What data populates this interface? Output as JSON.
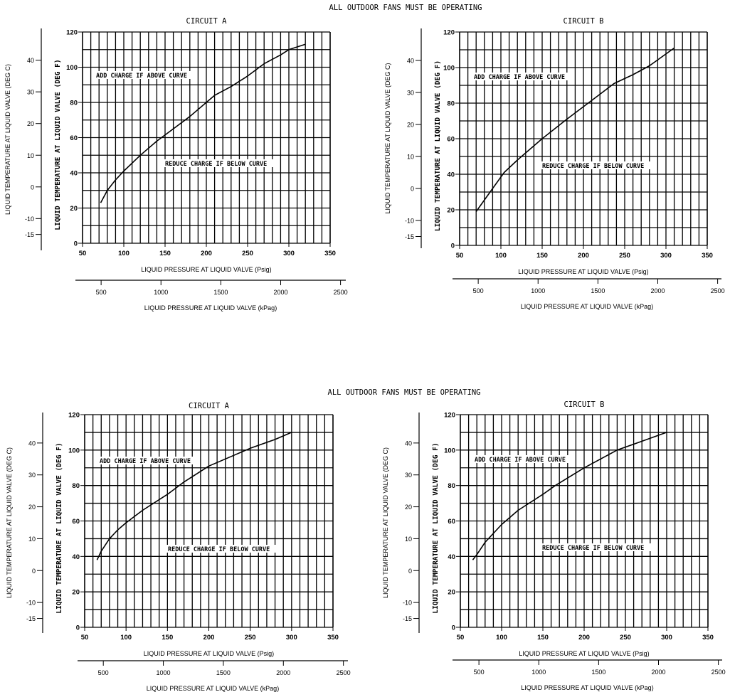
{
  "chart_data": [
    {
      "type": "line",
      "group_title": "ALL OUTDOOR FANS MUST BE OPERATING",
      "title": "CIRCUIT A",
      "xlabel": "LIQUID PRESSURE AT LIQUID VALVE (Psig)",
      "ylabel": "LIQUID TEMPERATURE AT LIQUID VALVE (DEG F)",
      "x2label": "LIQUID PRESSURE AT LIQUID VALVE (kPag)",
      "y2label": "LIQUID TEMPERATURE AT LIQUID VALVE (DEG C)",
      "xlim": [
        50,
        350
      ],
      "ylim": [
        0,
        120
      ],
      "xticks": [
        "50",
        "100",
        "150",
        "200",
        "250",
        "300",
        "350"
      ],
      "yticks": [
        "0",
        "20",
        "40",
        "60",
        "80",
        "100",
        "120"
      ],
      "x2ticks": [
        "500",
        "1000",
        "1500",
        "2000",
        "2500"
      ],
      "y2ticks": [
        "40",
        "30",
        "20",
        "10",
        "0",
        "-10",
        "-15"
      ],
      "annotations": [
        "ADD CHARGE IF ABOVE CURVE",
        "REDUCE CHARGE IF BELOW CURVE"
      ],
      "grid": true,
      "x": [
        72,
        80,
        90,
        100,
        120,
        140,
        160,
        180,
        200,
        210,
        230,
        250,
        270,
        290,
        300,
        320
      ],
      "y": [
        23,
        30,
        36,
        41,
        50,
        58,
        65,
        72,
        80,
        84,
        89,
        95,
        102,
        107,
        110,
        113
      ]
    },
    {
      "type": "line",
      "group_title": "",
      "title": "CIRCUIT B",
      "xlabel": "LIQUID PRESSURE AT LIQUID VALVE (Psig)",
      "ylabel": "LIQUID TEMPERATURE AT LIQUID VALVE (DEG F)",
      "x2label": "LIQUID PRESSURE AT LIQUID VALVE (kPag)",
      "y2label": "LIQUID TEMPERATURE AT LIQUID VALVE (DEG C)",
      "xlim": [
        50,
        350
      ],
      "ylim": [
        0,
        120
      ],
      "xticks": [
        "50",
        "100",
        "150",
        "200",
        "250",
        "300",
        "350"
      ],
      "yticks": [
        "0",
        "20",
        "40",
        "60",
        "80",
        "100",
        "120"
      ],
      "x2ticks": [
        "500",
        "1000",
        "1500",
        "2000",
        "2500"
      ],
      "y2ticks": [
        "40",
        "30",
        "20",
        "10",
        "0",
        "-10",
        "-15"
      ],
      "annotations": [
        "ADD CHARGE IF ABOVE CURVE",
        "REDUCE CHARGE IF BELOW CURVE"
      ],
      "grid": true,
      "x": [
        70,
        90,
        104,
        120,
        150,
        180,
        200,
        220,
        237,
        260,
        280,
        310
      ],
      "y": [
        19,
        32,
        41,
        48,
        60,
        71,
        78,
        85,
        91,
        96,
        101,
        111
      ]
    },
    {
      "type": "line",
      "group_title": "ALL OUTDOOR FANS MUST BE OPERATING",
      "title": "CIRCUIT A",
      "xlabel": "LIQUID PRESSURE AT LIQUID VALVE (Psig)",
      "ylabel": "LIQUID TEMPERATURE AT LIQUID VALVE (DEG F)",
      "x2label": "LIQUID PRESSURE AT LIQUID VALVE (kPag)",
      "y2label": "LIQUID TEMPERATURE AT LIQUID VALVE (DEG C)",
      "xlim": [
        50,
        350
      ],
      "ylim": [
        0,
        120
      ],
      "xticks": [
        "50",
        "100",
        "150",
        "200",
        "250",
        "300",
        "350"
      ],
      "yticks": [
        "0",
        "20",
        "40",
        "60",
        "80",
        "100",
        "120"
      ],
      "x2ticks": [
        "500",
        "1000",
        "1500",
        "2000",
        "2500"
      ],
      "y2ticks": [
        "40",
        "30",
        "20",
        "10",
        "0",
        "-10",
        "-15"
      ],
      "annotations": [
        "ADD CHARGE IF ABOVE CURVE",
        "REDUCE CHARGE IF BELOW CURVE"
      ],
      "grid": true,
      "x": [
        65,
        70,
        80,
        90,
        100,
        120,
        150,
        170,
        200,
        230,
        250,
        280,
        300
      ],
      "y": [
        38,
        43,
        50,
        55,
        59,
        66,
        75,
        82,
        91,
        97,
        101,
        106,
        110
      ]
    },
    {
      "type": "line",
      "group_title": "",
      "title": "CIRCUIT B",
      "xlabel": "LIQUID PRESSURE AT LIQUID VALVE (Psig)",
      "ylabel": "LIQUID TEMPERATURE AT LIQUID VALVE (DEG F)",
      "x2label": "LIQUID PRESSURE AT LIQUID VALVE (kPag)",
      "y2label": "LIQUID TEMPERATURE AT LIQUID VALVE (DEG C)",
      "xlim": [
        50,
        350
      ],
      "ylim": [
        0,
        120
      ],
      "xticks": [
        "50",
        "100",
        "150",
        "200",
        "250",
        "300",
        "350"
      ],
      "yticks": [
        "0",
        "20",
        "40",
        "60",
        "80",
        "100",
        "120"
      ],
      "x2ticks": [
        "500",
        "1000",
        "1500",
        "2000",
        "2500"
      ],
      "y2ticks": [
        "40",
        "30",
        "20",
        "10",
        "0",
        "-10",
        "-15"
      ],
      "annotations": [
        "ADD CHARGE IF ABOVE CURVE",
        "REDUCE CHARGE IF BELOW CURVE"
      ],
      "grid": true,
      "x": [
        65,
        70,
        80,
        100,
        120,
        150,
        165,
        200,
        240,
        270,
        300
      ],
      "y": [
        38,
        41,
        48,
        58,
        66,
        75,
        80,
        90,
        100,
        105,
        110
      ]
    }
  ],
  "colors": {
    "ink": "#000000",
    "paper": "#ffffff"
  }
}
